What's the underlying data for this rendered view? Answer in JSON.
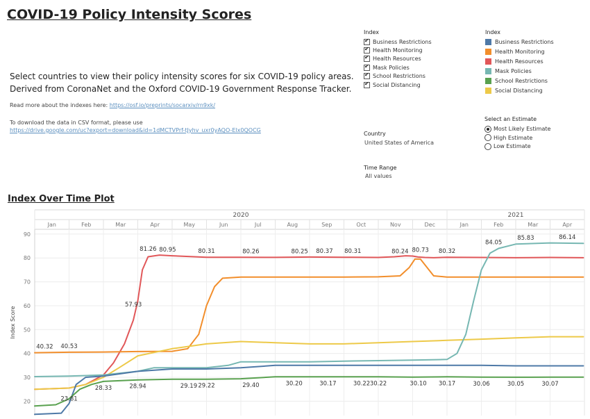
{
  "title": "COVID-19 Policy Intensity Scores",
  "intro": "Select countries to view their policy intensity scores for six COVID-19 policy areas. Derived from CoronaNet and the Oxford COVID-19 Government Response Tracker.",
  "read_more_text": "Read more about the indexes here: ",
  "read_more_link": "https://osf.io/preprints/socarxiv/rn9xk/",
  "download_text": "To download the data in CSV format, please use",
  "download_link": "https://drive.google.com/uc?export=download&id=1dMCTVPrf-tJyhv_uxr0yAQO-Elx0QOCG",
  "index_filter": {
    "label": "Index",
    "items": [
      "Business Restrictions",
      "Health Monitoring",
      "Health Resources",
      "Mask Policies",
      "School Restrictions",
      "Social Distancing"
    ]
  },
  "country": {
    "label": "Country",
    "value": "United States of America"
  },
  "time_range": {
    "label": "Time Range",
    "value": "All values"
  },
  "estimate": {
    "label": "Select an Estimate",
    "options": [
      "Most Likely Estimate",
      "High Estimate",
      "Low Estimate"
    ],
    "selected": 0
  },
  "colors": {
    "business": "#4e79a7",
    "health_monitoring": "#f28e2b",
    "health_resources": "#e15759",
    "mask": "#76b7b2",
    "school": "#59a14f",
    "social": "#edc948"
  },
  "plot_title": "Index Over Time Plot",
  "chart_data": {
    "type": "line",
    "title": "Index Over Time Plot",
    "ylabel": "Index Score",
    "xlabel": "",
    "ylim": [
      14,
      92
    ],
    "yticks": [
      20,
      30,
      40,
      50,
      60,
      70,
      80,
      90
    ],
    "x_start": "2020-01",
    "x_end": "2021-04",
    "years": [
      {
        "label": "2020",
        "month_span": [
          0,
          12
        ]
      },
      {
        "label": "2021",
        "month_span": [
          12,
          16
        ]
      }
    ],
    "month_labels": [
      "Jan",
      "Feb",
      "Mar",
      "Apr",
      "May",
      "Jun",
      "Jul",
      "Aug",
      "Sep",
      "Oct",
      "Nov",
      "Dec",
      "Jan",
      "Feb",
      "Mar",
      "Apr"
    ],
    "grid": true,
    "legend": {
      "title": "Index",
      "position": "top-right",
      "entries": [
        "Business Restrictions",
        "Health Monitoring",
        "Health Resources",
        "Mask Policies",
        "School Restrictions",
        "Social Distancing"
      ]
    },
    "series": [
      {
        "name": "Health Resources",
        "color": "#e15759",
        "x": [
          "2020-01-01",
          "2020-02-01",
          "2020-02-15",
          "2020-03-01",
          "2020-03-10",
          "2020-03-20",
          "2020-03-28",
          "2020-04-01",
          "2020-04-05",
          "2020-04-10",
          "2020-04-20",
          "2020-05-01",
          "2020-06-01",
          "2020-07-01",
          "2020-08-01",
          "2020-09-01",
          "2020-10-01",
          "2020-11-01",
          "2020-11-15",
          "2020-11-25",
          "2020-12-01",
          "2020-12-06",
          "2020-12-12",
          "2020-12-20",
          "2021-01-01",
          "2021-02-01",
          "2021-03-01",
          "2021-04-01",
          "2021-04-30"
        ],
        "y": [
          25,
          25.5,
          27,
          31,
          36,
          44,
          54,
          62,
          75,
          80.5,
          81.2,
          80.9,
          80.3,
          80.3,
          80.25,
          80.4,
          80.3,
          80.2,
          80.5,
          80.9,
          80.8,
          80.4,
          80.2,
          80.1,
          80.3,
          80.2,
          80.1,
          80.2,
          80.1
        ]
      },
      {
        "name": "Health Monitoring",
        "color": "#f28e2b",
        "x": [
          "2020-01-01",
          "2020-02-01",
          "2020-03-01",
          "2020-04-01",
          "2020-05-01",
          "2020-05-15",
          "2020-05-25",
          "2020-06-01",
          "2020-06-08",
          "2020-06-15",
          "2020-07-01",
          "2020-08-01",
          "2020-09-01",
          "2020-10-01",
          "2020-11-01",
          "2020-11-20",
          "2020-11-28",
          "2020-12-03",
          "2020-12-08",
          "2020-12-14",
          "2020-12-20",
          "2021-01-01",
          "2021-02-01",
          "2021-03-01",
          "2021-04-01",
          "2021-04-30"
        ],
        "y": [
          40.3,
          40.5,
          40.6,
          40.8,
          40.9,
          42,
          48,
          60,
          68,
          71.5,
          72,
          72,
          72,
          72,
          72.1,
          72.5,
          76,
          79.5,
          79.5,
          76,
          72.5,
          72,
          72,
          72,
          72,
          72
        ]
      },
      {
        "name": "Social Distancing",
        "color": "#edc948",
        "x": [
          "2020-01-01",
          "2020-02-01",
          "2020-02-15",
          "2020-03-01",
          "2020-03-15",
          "2020-04-01",
          "2020-05-01",
          "2020-06-01",
          "2020-07-01",
          "2020-08-01",
          "2020-09-01",
          "2020-10-01",
          "2020-11-01",
          "2020-12-01",
          "2021-01-01",
          "2021-02-01",
          "2021-03-01",
          "2021-04-01",
          "2021-04-30"
        ],
        "y": [
          25,
          25.5,
          27,
          30,
          34,
          39,
          42,
          44,
          45,
          44.5,
          44,
          44,
          44.5,
          45,
          45.5,
          46,
          46.5,
          47,
          47
        ]
      },
      {
        "name": "Mask Policies",
        "color": "#76b7b2",
        "x": [
          "2020-01-01",
          "2020-02-01",
          "2020-03-01",
          "2020-04-01",
          "2020-04-15",
          "2020-05-01",
          "2020-06-01",
          "2020-06-20",
          "2020-07-01",
          "2020-08-01",
          "2020-09-01",
          "2020-10-01",
          "2020-11-01",
          "2020-12-01",
          "2021-01-01",
          "2021-01-10",
          "2021-01-18",
          "2021-01-25",
          "2021-02-01",
          "2021-02-08",
          "2021-02-15",
          "2021-03-01",
          "2021-04-01",
          "2021-04-30"
        ],
        "y": [
          30.3,
          30.5,
          31,
          32.5,
          34,
          34,
          34,
          35,
          36.5,
          36.5,
          36.5,
          36.8,
          37,
          37.2,
          37.5,
          40,
          48,
          62,
          75,
          82,
          84,
          85.8,
          86.3,
          86.1
        ]
      },
      {
        "name": "Business Restrictions",
        "color": "#4e79a7",
        "x": [
          "2020-01-01",
          "2020-01-25",
          "2020-02-01",
          "2020-02-07",
          "2020-02-15",
          "2020-03-01",
          "2020-04-01",
          "2020-05-01",
          "2020-06-01",
          "2020-07-01",
          "2020-08-01",
          "2020-09-01",
          "2020-10-01",
          "2020-11-01",
          "2020-12-01",
          "2021-01-01",
          "2021-02-01",
          "2021-03-01",
          "2021-04-01",
          "2021-04-30"
        ],
        "y": [
          14.5,
          15,
          19,
          27,
          30,
          30.5,
          32.5,
          33.5,
          33.5,
          34,
          35,
          35,
          35,
          35,
          35,
          35,
          35,
          34.8,
          34.8,
          34.8
        ]
      },
      {
        "name": "School Restrictions",
        "color": "#59a14f",
        "x": [
          "2020-01-01",
          "2020-01-20",
          "2020-02-01",
          "2020-02-10",
          "2020-02-20",
          "2020-03-01",
          "2020-04-01",
          "2020-05-01",
          "2020-06-01",
          "2020-07-01",
          "2020-08-01",
          "2020-09-01",
          "2020-10-01",
          "2020-11-01",
          "2020-12-01",
          "2021-01-01",
          "2021-02-01",
          "2021-03-01",
          "2021-04-01",
          "2021-04-30"
        ],
        "y": [
          18,
          18.5,
          21,
          25,
          27,
          28.3,
          28.9,
          29.2,
          29.2,
          29.4,
          30.2,
          30.2,
          30.2,
          30.2,
          30.1,
          30.2,
          30.1,
          30.05,
          30.07,
          30.07
        ]
      }
    ],
    "annotations": [
      {
        "x": "2020-01-10",
        "y": 40.32,
        "text": "40.32"
      },
      {
        "x": "2020-02-01",
        "y": 40.53,
        "text": "40.53"
      },
      {
        "x": "2020-03-28",
        "y": 57.93,
        "text": "57.93"
      },
      {
        "x": "2020-04-10",
        "y": 81.26,
        "text": "81.26"
      },
      {
        "x": "2020-04-27",
        "y": 80.95,
        "text": "80.95"
      },
      {
        "x": "2020-06-01",
        "y": 80.31,
        "text": "80.31"
      },
      {
        "x": "2020-07-10",
        "y": 80.26,
        "text": "80.26"
      },
      {
        "x": "2020-08-23",
        "y": 80.25,
        "text": "80.25"
      },
      {
        "x": "2020-09-14",
        "y": 80.37,
        "text": "80.37"
      },
      {
        "x": "2020-10-09",
        "y": 80.31,
        "text": "80.31"
      },
      {
        "x": "2020-11-20",
        "y": 80.24,
        "text": "80.24"
      },
      {
        "x": "2020-12-08",
        "y": 80.73,
        "text": "80.73"
      },
      {
        "x": "2021-01-01",
        "y": 80.32,
        "text": "80.32"
      },
      {
        "x": "2021-02-11",
        "y": 84.05,
        "text": "84.05"
      },
      {
        "x": "2021-03-10",
        "y": 85.83,
        "text": "85.83"
      },
      {
        "x": "2021-04-16",
        "y": 86.14,
        "text": "86.14"
      },
      {
        "x": "2020-02-01",
        "y": 23.81,
        "text": "23.81"
      },
      {
        "x": "2020-03-01",
        "y": 28.33,
        "text": "28.33"
      },
      {
        "x": "2020-04-01",
        "y": 28.94,
        "text": "28.94"
      },
      {
        "x": "2020-05-16",
        "y": 29.19,
        "text": "29.19"
      },
      {
        "x": "2020-06-01",
        "y": 29.22,
        "text": "29.22"
      },
      {
        "x": "2020-07-10",
        "y": 29.4,
        "text": "29.40"
      },
      {
        "x": "2020-08-18",
        "y": 30.2,
        "text": "30.20"
      },
      {
        "x": "2020-09-17",
        "y": 30.17,
        "text": "30.17"
      },
      {
        "x": "2020-10-17",
        "y": 30.22,
        "text": "30.22"
      },
      {
        "x": "2020-11-01",
        "y": 30.22,
        "text": "30.22"
      },
      {
        "x": "2020-12-06",
        "y": 30.1,
        "text": "30.10"
      },
      {
        "x": "2021-01-01",
        "y": 30.17,
        "text": "30.17"
      },
      {
        "x": "2021-02-01",
        "y": 30.06,
        "text": "30.06"
      },
      {
        "x": "2021-03-01",
        "y": 30.05,
        "text": "30.05"
      },
      {
        "x": "2021-04-01",
        "y": 30.07,
        "text": "30.07"
      }
    ]
  }
}
